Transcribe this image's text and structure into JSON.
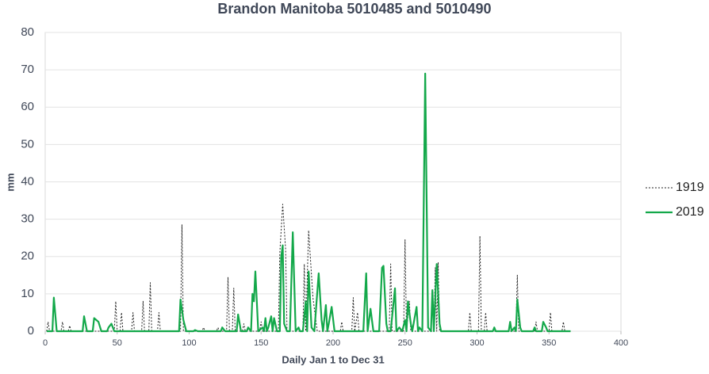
{
  "chart_data": {
    "type": "line",
    "title": "Brandon Manitoba 5010485 and 5010490",
    "xlabel": "Daily Jan 1 to Dec 31",
    "ylabel": "mm",
    "xlim": [
      0,
      400
    ],
    "xticks": [
      0,
      50,
      100,
      150,
      200,
      250,
      300,
      350,
      400
    ],
    "ylim": [
      0,
      80
    ],
    "yticks": [
      0,
      10,
      20,
      30,
      40,
      50,
      60,
      70,
      80
    ],
    "grid": true,
    "legend": "right",
    "series": [
      {
        "name": "1919",
        "color": "#222222",
        "dashed": true,
        "x": [
          1,
          2,
          3,
          11,
          12,
          13,
          16,
          17,
          18,
          48,
          49,
          50,
          52,
          53,
          54,
          60,
          61,
          62,
          67,
          68,
          69,
          72,
          73,
          74,
          78,
          79,
          80,
          94,
          95,
          96,
          109,
          110,
          111,
          119,
          120,
          121,
          126,
          127,
          128,
          130,
          131,
          132,
          137,
          138,
          139,
          149,
          150,
          151,
          162,
          163,
          165,
          167,
          168,
          179,
          180,
          181,
          183,
          186,
          188,
          189,
          205,
          206,
          207,
          213,
          214,
          215,
          217,
          218,
          239,
          240,
          241,
          249,
          250,
          251,
          253,
          254,
          270,
          271,
          272,
          273,
          274,
          294,
          295,
          296,
          301,
          302,
          303,
          305,
          306,
          307,
          327,
          328,
          329,
          340,
          341,
          342,
          350,
          351,
          352,
          359,
          360,
          361,
          365
        ],
        "values": [
          0,
          2.5,
          0,
          0,
          2.5,
          0,
          0,
          1.5,
          0,
          0,
          8,
          0,
          0,
          5,
          0,
          0,
          5,
          0,
          0,
          8,
          0,
          0,
          13,
          0,
          0,
          5,
          0,
          0,
          28.5,
          0,
          0,
          1,
          0,
          0,
          1,
          0,
          0,
          14.5,
          0,
          0,
          11.5,
          0,
          0,
          2,
          0,
          0,
          2.5,
          0,
          0,
          21,
          34,
          22,
          0,
          0,
          18,
          0,
          27,
          9,
          3,
          0,
          0,
          2.5,
          0,
          0,
          9,
          0,
          5,
          0,
          0,
          18,
          0,
          0,
          24.5,
          0,
          8,
          0,
          0,
          17,
          0,
          18.5,
          0,
          0,
          5,
          0,
          0,
          25.5,
          0,
          0,
          5,
          0,
          0,
          15,
          0,
          0,
          2.5,
          0,
          0,
          5,
          0,
          0,
          2.5,
          0,
          0
        ]
      },
      {
        "name": "2019",
        "color": "#13a84a",
        "dashed": false,
        "x": [
          1,
          5,
          6,
          8,
          26,
          27,
          29,
          33,
          34,
          37,
          39,
          43,
          44,
          46,
          48,
          93,
          94,
          96,
          98,
          103,
          104,
          106,
          122,
          123,
          125,
          133,
          134,
          136,
          140,
          141,
          143,
          144,
          145,
          146,
          148,
          151,
          152,
          153,
          154,
          155,
          157,
          158,
          159,
          161,
          163,
          164,
          165,
          166,
          168,
          170,
          172,
          174,
          176,
          177,
          179,
          181,
          182,
          183,
          185,
          187,
          190,
          192,
          193,
          195,
          196,
          197,
          199,
          201,
          221,
          223,
          224,
          226,
          228,
          232,
          234,
          235,
          237,
          238,
          240,
          243,
          244,
          246,
          248,
          250,
          251,
          252,
          254,
          255,
          258,
          259,
          260,
          262,
          264,
          266,
          268,
          269,
          270,
          272,
          274,
          275,
          311,
          312,
          313,
          322,
          323,
          324,
          326,
          327,
          328,
          330,
          331,
          339,
          340,
          341,
          345,
          346,
          348,
          349,
          365
        ],
        "values": [
          0,
          0,
          9,
          0,
          0,
          4,
          0,
          0,
          3.5,
          2.5,
          0,
          0,
          1,
          2,
          0,
          0,
          8.5,
          3,
          0,
          0,
          0.3,
          0,
          0,
          1,
          0,
          0,
          4.5,
          0,
          0,
          1,
          0,
          10,
          8,
          16,
          0,
          1,
          0,
          3.5,
          0,
          1,
          4,
          0,
          3.5,
          0,
          0,
          20,
          23,
          2,
          0,
          0,
          26.5,
          0,
          1,
          0,
          0,
          8,
          0,
          16,
          1,
          0,
          15.5,
          3,
          0,
          7,
          0,
          2,
          6.5,
          0,
          0,
          15.5,
          0,
          6,
          0,
          0,
          17,
          17.5,
          2,
          0,
          0,
          11.5,
          0,
          1,
          0,
          3,
          0,
          8,
          2,
          0,
          6.5,
          0,
          1,
          0,
          69,
          1,
          0,
          11,
          0,
          18,
          2,
          0,
          0,
          1,
          0,
          0,
          2.5,
          0,
          1,
          0,
          8.5,
          1,
          0,
          0,
          1,
          0,
          0,
          2.5,
          1,
          0,
          0
        ]
      }
    ]
  }
}
